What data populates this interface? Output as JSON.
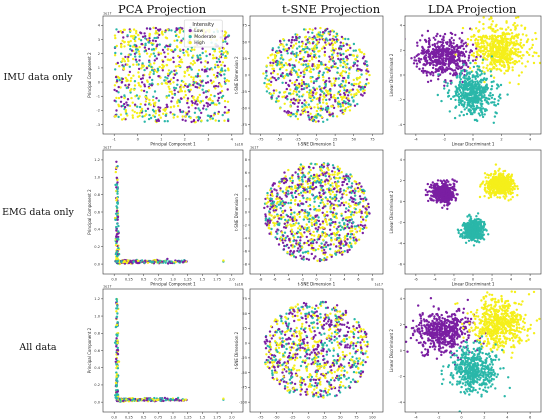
{
  "column_titles": [
    "PCA Projection",
    "t-SNE Projection",
    "LDA Projection"
  ],
  "row_titles": [
    "IMU data only",
    "EMG data only",
    "All data"
  ],
  "colors": {
    "Low": "#7a1fa2",
    "Moderate": "#2ab7a9",
    "High": "#f5ef1a"
  },
  "chart_data": [
    {
      "type": "scatter",
      "panel": "imu-pca",
      "xlabel": "Principal Component 1",
      "ylabel": "Principal Component 2",
      "xlim": [
        -1.5,
        5.5
      ],
      "ylim": [
        -3.5,
        5
      ],
      "x_offset": "1e16",
      "y_offset": "1e17",
      "xticks": [
        "-1",
        "0",
        "1",
        "2",
        "3",
        "4"
      ],
      "yticks": [
        "-3",
        "-2",
        "-1",
        "0",
        "1",
        "2",
        "3",
        "4"
      ],
      "legend": {
        "title": "Intensity",
        "entries": [
          "Low",
          "Moderate",
          "High"
        ],
        "position": "top-right"
      }
    },
    {
      "type": "scatter",
      "panel": "imu-tsne",
      "xlabel": "t-SNE Dimension 1",
      "ylabel": "t-SNE Dimension 2",
      "xlim": [
        -85,
        85
      ],
      "ylim": [
        -100,
        100
      ],
      "xticks": [
        "-75",
        "-50",
        "-25",
        "0",
        "25",
        "50",
        "75"
      ],
      "yticks": [
        "-75",
        "-50",
        "-25",
        "0",
        "25",
        "50",
        "75"
      ]
    },
    {
      "type": "scatter",
      "panel": "imu-lda",
      "xlabel": "Linear Discriminant 1",
      "ylabel": "Linear Discriminant 2",
      "xlim": [
        -5,
        6
      ],
      "ylim": [
        -5,
        5
      ],
      "xticks": [
        "-4",
        "-2",
        "0",
        "2",
        "4"
      ],
      "yticks": [
        "-4",
        "-2",
        "0",
        "2",
        "4"
      ]
    },
    {
      "type": "scatter",
      "panel": "emg-pca",
      "xlabel": "Principal Component 1",
      "ylabel": "Principal Component 2",
      "xlim": [
        -0.1,
        2.1
      ],
      "ylim": [
        -0.1,
        1.35
      ],
      "x_offset": "1e16",
      "y_offset": "1e17",
      "xticks": [
        "0.0",
        "0.25",
        "0.5",
        "0.75",
        "1.0",
        "1.25",
        "1.5",
        "1.75",
        "2.0"
      ],
      "yticks": [
        "0.0",
        "0.2",
        "0.4",
        "0.6",
        "0.8",
        "1.0",
        "1.2"
      ]
    },
    {
      "type": "scatter",
      "panel": "emg-tsne",
      "xlabel": "t-SNE Dimension 1",
      "ylabel": "t-SNE Dimension 2",
      "xlim": [
        -8.5,
        8.5
      ],
      "ylim": [
        -8.5,
        10
      ],
      "x_offset": "1e17",
      "y_offset": "1e17",
      "xticks": [
        "-8",
        "-6",
        "-4",
        "-2",
        "0",
        "2",
        "4",
        "6",
        "8"
      ],
      "yticks": [
        "-8",
        "-6",
        "-4",
        "-2",
        "0",
        "2",
        "4",
        "6",
        "8"
      ]
    },
    {
      "type": "scatter",
      "panel": "emg-lda",
      "xlabel": "Linear Discriminant 1",
      "ylabel": "Linear Discriminant 2",
      "xlim": [
        -7,
        7
      ],
      "ylim": [
        -7,
        5
      ],
      "xticks": [
        "-6",
        "-4",
        "-2",
        "0",
        "2",
        "4",
        "6"
      ],
      "yticks": [
        "-6",
        "-4",
        "-2",
        "0",
        "2",
        "4"
      ]
    },
    {
      "type": "scatter",
      "panel": "all-pca",
      "xlabel": "Principal Component 1",
      "ylabel": "Principal Component 2",
      "xlim": [
        -0.1,
        2.1
      ],
      "ylim": [
        -0.1,
        1.35
      ],
      "x_offset": "1e16",
      "y_offset": "1e17",
      "xticks": [
        "0.0",
        "0.25",
        "0.5",
        "0.75",
        "1.0",
        "1.25",
        "1.5",
        "1.75",
        "2.0"
      ],
      "yticks": [
        "0.0",
        "0.2",
        "0.4",
        "0.6",
        "0.8",
        "1.0",
        "1.2"
      ]
    },
    {
      "type": "scatter",
      "panel": "all-tsne",
      "xlabel": "t-SNE Dimension 1",
      "ylabel": "t-SNE Dimension 2",
      "xlim": [
        -90,
        110
      ],
      "ylim": [
        -110,
        100
      ],
      "xticks": [
        "-75",
        "-50",
        "-25",
        "0",
        "25",
        "50",
        "75",
        "100"
      ],
      "yticks": [
        "-100",
        "-75",
        "-50",
        "-25",
        "0",
        "25",
        "50",
        "75"
      ]
    },
    {
      "type": "scatter",
      "panel": "all-lda",
      "xlabel": "Linear Discriminant 1",
      "ylabel": "Linear Discriminant 2",
      "xlim": [
        -6,
        7
      ],
      "ylim": [
        -5,
        6
      ],
      "xticks": [
        "-4",
        "-2",
        "0",
        "2",
        "4",
        "6"
      ],
      "yticks": [
        "-4",
        "-2",
        "0",
        "2",
        "4"
      ]
    }
  ]
}
